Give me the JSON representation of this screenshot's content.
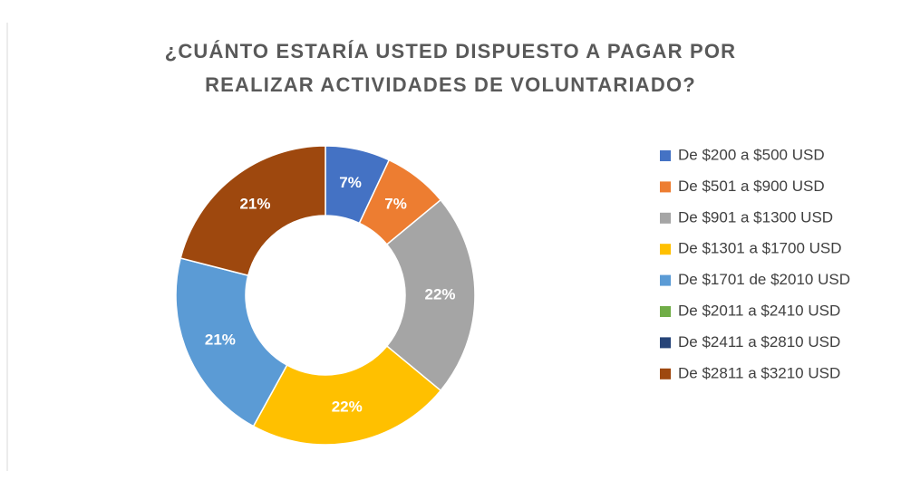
{
  "chart_data": {
    "type": "donut",
    "title": "¿CUÁNTO ESTARÍA USTED DISPUESTO A PAGAR POR REALIZAR ACTIVIDADES DE VOLUNTARIADO?",
    "categories": [
      "De $200 a $500 USD",
      "De $501 a $900 USD",
      "De $901 a $1300 USD",
      "De $1301 a $1700 USD",
      "De $1701 de $2010 USD",
      "De $2011 a $2410 USD",
      "De $2411 a $2810 USD",
      "De $2811 a $3210 USD"
    ],
    "values": [
      7,
      7,
      22,
      22,
      21,
      0,
      0,
      21
    ],
    "value_labels": [
      "7%",
      "7%",
      "22%",
      "22%",
      "21%",
      null,
      null,
      "21%"
    ],
    "colors": [
      "#4472c4",
      "#ed7d31",
      "#a5a5a5",
      "#ffc000",
      "#5b9bd5",
      "#70ad47",
      "#264478",
      "#9e480e"
    ],
    "legend": "right"
  }
}
